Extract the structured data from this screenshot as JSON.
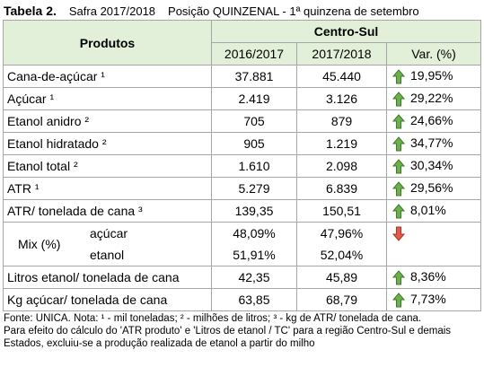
{
  "header": {
    "label": "Tabela 2.",
    "safra": "Safra 2017/2018",
    "posicao": "Posição QUINZENAL - 1ª quinzena de setembro"
  },
  "table": {
    "columns": {
      "produtos": "Produtos",
      "region": "Centro-Sul",
      "years": [
        "2016/2017",
        "2017/2018"
      ],
      "var": "Var. (%)"
    },
    "rows": [
      {
        "label": "Cana-de-açúcar ¹",
        "values": [
          "37.881",
          "45.440"
        ],
        "var": "19,95%",
        "arrow": "up"
      },
      {
        "label": "Açúcar ¹",
        "values": [
          "2.419",
          "3.126"
        ],
        "var": "29,22%",
        "arrow": "up"
      },
      {
        "label": "Etanol anidro ²",
        "values": [
          "705",
          "879"
        ],
        "var": "24,66%",
        "arrow": "up"
      },
      {
        "label": "Etanol hidratado ²",
        "values": [
          "905",
          "1.219"
        ],
        "var": "34,77%",
        "arrow": "up"
      },
      {
        "label": "Etanol total ²",
        "values": [
          "1.610",
          "2.098"
        ],
        "var": "30,34%",
        "arrow": "up"
      },
      {
        "label": "ATR ¹",
        "values": [
          "5.279",
          "6.839"
        ],
        "var": "29,56%",
        "arrow": "up"
      },
      {
        "label": "ATR/ tonelada de cana ³",
        "values": [
          "139,35",
          "150,51"
        ],
        "var": "8,01%",
        "arrow": "up"
      },
      {
        "label": "Mix (%)",
        "arrow": "down",
        "subrows": [
          {
            "label": "açúcar",
            "values": [
              "48,09%",
              "47,96%"
            ]
          },
          {
            "label": "etanol",
            "values": [
              "51,91%",
              "52,04%"
            ]
          }
        ]
      },
      {
        "label": "Litros etanol/ tonelada de cana",
        "values": [
          "42,35",
          "45,89"
        ],
        "var": "8,36%",
        "arrow": "up"
      },
      {
        "label": "Kg açúcar/ tonelada de cana",
        "values": [
          "63,85",
          "68,79"
        ],
        "var": "7,73%",
        "arrow": "up"
      }
    ]
  },
  "footer": [
    "Fonte: UNICA. Nota: ¹ - mil toneladas; ² - milhões de litros; ³ - kg de ATR/ tonelada de cana.",
    "Para efeito do cálculo do 'ATR produto' e 'Litros de etanol / TC'  para a região Centro-Sul e demais",
    "Estados, excluiu-se a produção realizada de etanol a partir do milho"
  ]
}
